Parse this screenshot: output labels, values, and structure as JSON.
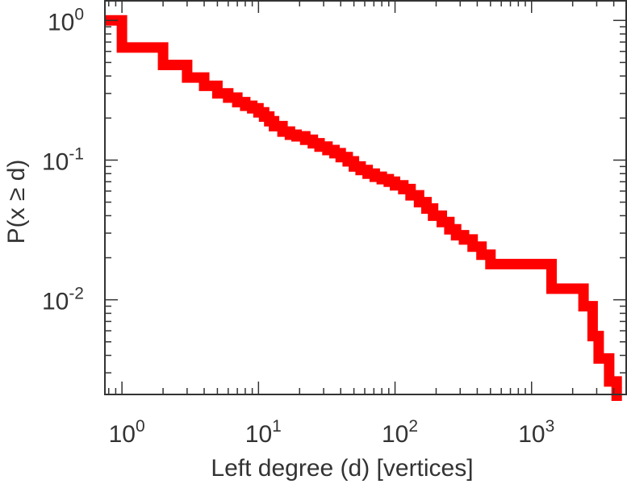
{
  "chart_data": {
    "type": "line",
    "step": true,
    "xlabel": "Left degree (d) [vertices]",
    "ylabel": "P(x ≥ d)",
    "xscale": "log",
    "yscale": "log",
    "xlim": [
      0.75,
      5000
    ],
    "ylim": [
      0.0021,
      1.4
    ],
    "grid": false,
    "x_ticks": [
      {
        "base": "10",
        "exp": "0",
        "value": 1
      },
      {
        "base": "10",
        "exp": "1",
        "value": 10
      },
      {
        "base": "10",
        "exp": "2",
        "value": 100
      },
      {
        "base": "10",
        "exp": "3",
        "value": 1000
      }
    ],
    "y_ticks": [
      {
        "base": "10",
        "exp": "0",
        "value": 1
      },
      {
        "base": "10",
        "exp": "-1",
        "value": 0.1
      },
      {
        "base": "10",
        "exp": "-2",
        "value": 0.01
      }
    ],
    "series": [
      {
        "color": "#ff0000",
        "x": [
          0.75,
          1,
          2,
          3,
          4,
          5,
          6,
          7,
          8,
          9,
          10,
          11,
          12,
          13,
          15,
          17,
          19,
          22,
          25,
          28,
          32,
          36,
          40,
          45,
          50,
          56,
          63,
          71,
          80,
          90,
          100,
          115,
          130,
          150,
          170,
          190,
          220,
          250,
          280,
          320,
          370,
          430,
          500,
          640,
          1400,
          2400,
          2800,
          3100,
          3700,
          4200
        ],
        "y": [
          1.0,
          0.64,
          0.48,
          0.39,
          0.34,
          0.3,
          0.28,
          0.26,
          0.245,
          0.235,
          0.22,
          0.205,
          0.19,
          0.175,
          0.16,
          0.152,
          0.148,
          0.14,
          0.132,
          0.125,
          0.118,
          0.112,
          0.105,
          0.098,
          0.09,
          0.085,
          0.08,
          0.076,
          0.073,
          0.07,
          0.066,
          0.062,
          0.056,
          0.05,
          0.045,
          0.04,
          0.036,
          0.032,
          0.029,
          0.027,
          0.024,
          0.021,
          0.018,
          0.018,
          0.012,
          0.009,
          0.0055,
          0.0038,
          0.0026,
          0.0021
        ]
      }
    ]
  }
}
